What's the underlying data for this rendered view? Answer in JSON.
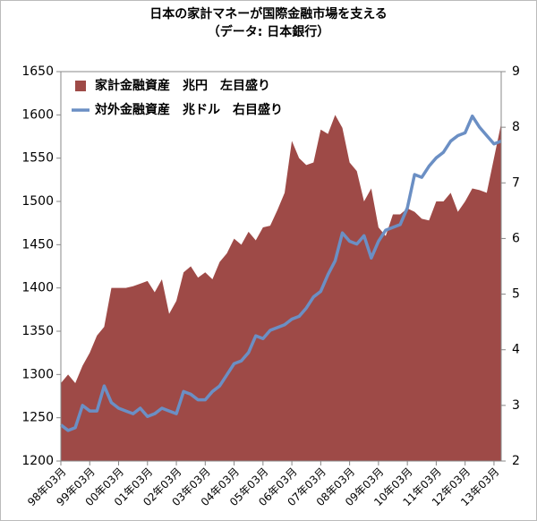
{
  "chart_data": {
    "type": "area-line",
    "title": "日本の家計マネーが国際金融市場を支える",
    "subtitle": "（データ: 日本銀行）",
    "categories": [
      "98年03月",
      null,
      null,
      null,
      "99年03月",
      null,
      null,
      null,
      "00年03月",
      null,
      null,
      null,
      "01年03月",
      null,
      null,
      null,
      "02年03月",
      null,
      null,
      null,
      "03年03月",
      null,
      null,
      null,
      "04年03月",
      null,
      null,
      null,
      "05年03月",
      null,
      null,
      null,
      "06年03月",
      null,
      null,
      null,
      "07年03月",
      null,
      null,
      null,
      "08年03月",
      null,
      null,
      null,
      "09年03月",
      null,
      null,
      null,
      "10年03月",
      null,
      null,
      null,
      "11年03月",
      null,
      null,
      null,
      "12年03月",
      null,
      null,
      null,
      "13年03月",
      null
    ],
    "series": [
      {
        "name": "家計金融資産　兆円　左目盛り",
        "color": "#9e4a47",
        "kind": "area",
        "values": [
          1290,
          1300,
          1290,
          1310,
          1325,
          1345,
          1355,
          1400,
          1400,
          1400,
          1402,
          1405,
          1408,
          1395,
          1410,
          1370,
          1385,
          1418,
          1425,
          1412,
          1418,
          1410,
          1430,
          1440,
          1457,
          1450,
          1465,
          1455,
          1470,
          1472,
          1490,
          1510,
          1570,
          1550,
          1542,
          1545,
          1583,
          1578,
          1600,
          1585,
          1545,
          1535,
          1500,
          1515,
          1470,
          1460,
          1485,
          1485,
          1492,
          1488,
          1480,
          1478,
          1500,
          1500,
          1510,
          1488,
          1500,
          1515,
          1513,
          1510,
          1550,
          1590
        ]
      },
      {
        "name": "対外金融資産　兆ドル　右目盛り",
        "color": "#6b8fc4",
        "kind": "line",
        "axis": "y2",
        "values": [
          2.65,
          2.55,
          2.6,
          3.0,
          2.9,
          2.9,
          3.35,
          3.05,
          2.95,
          2.9,
          2.85,
          2.95,
          2.8,
          2.85,
          2.95,
          2.9,
          2.85,
          3.25,
          3.2,
          3.1,
          3.1,
          3.25,
          3.35,
          3.55,
          3.75,
          3.8,
          3.95,
          4.25,
          4.2,
          4.35,
          4.4,
          4.45,
          4.55,
          4.6,
          4.75,
          4.95,
          5.05,
          5.35,
          5.6,
          6.1,
          5.95,
          5.9,
          6.05,
          5.65,
          5.95,
          6.15,
          6.2,
          6.25,
          6.55,
          7.15,
          7.1,
          7.3,
          7.45,
          7.55,
          7.75,
          7.85,
          7.9,
          8.2,
          8.0,
          7.85,
          7.7,
          7.75
        ]
      }
    ],
    "ylim": [
      1200,
      1650
    ],
    "yticks": [
      1200,
      1250,
      1300,
      1350,
      1400,
      1450,
      1500,
      1550,
      1600,
      1650
    ],
    "y2lim": [
      2,
      9
    ],
    "y2ticks": [
      2,
      3,
      4,
      5,
      6,
      7,
      8,
      9
    ],
    "grid": false,
    "legend": "upper-left"
  }
}
